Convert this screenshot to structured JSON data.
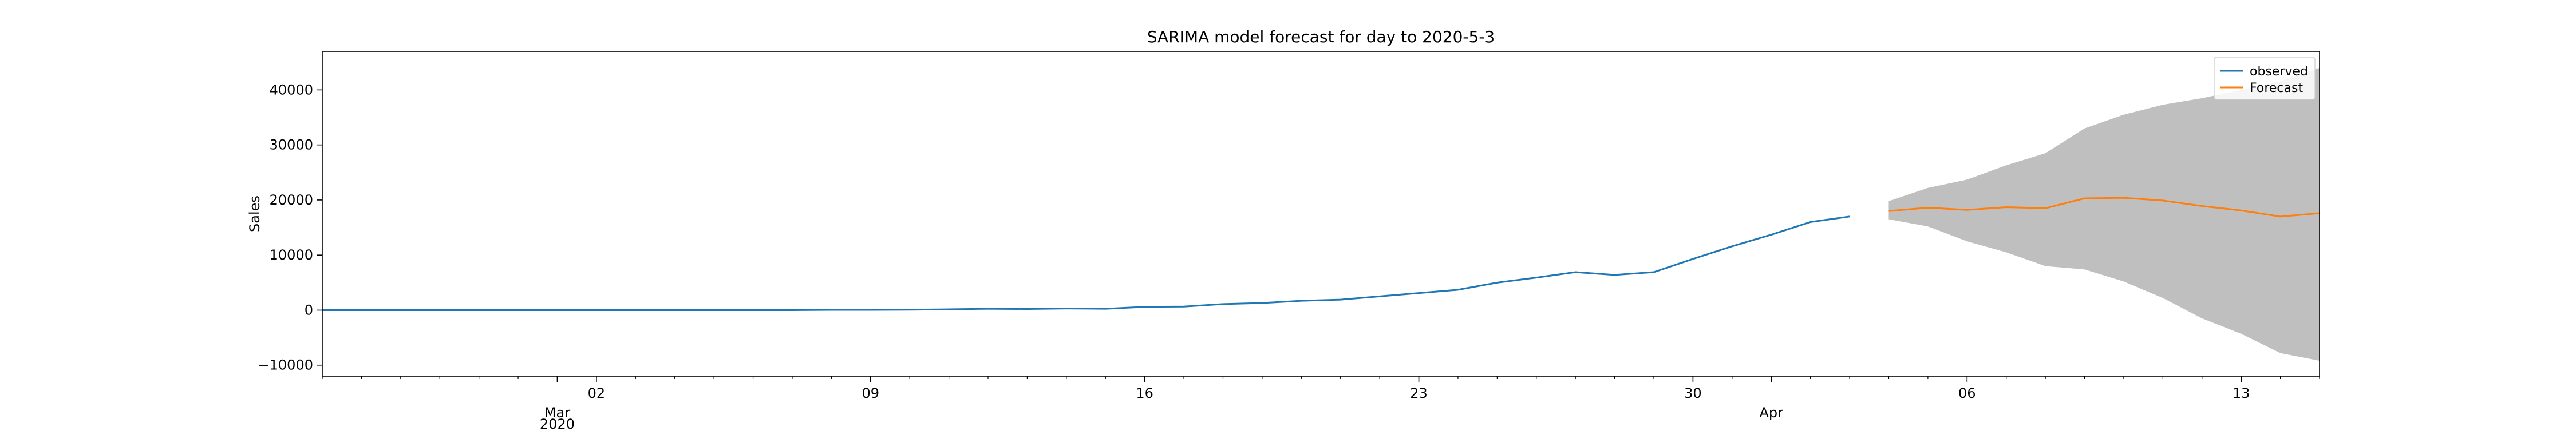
{
  "chart_data": {
    "type": "line",
    "title": "SARIMA model forecast for day to 2020-5-3",
    "xlabel": "",
    "ylabel": "Sales",
    "xlim": [
      "2020-02-24",
      "2020-04-15"
    ],
    "ylim": [
      -12000,
      47000
    ],
    "y_ticks": [
      -10000,
      0,
      10000,
      20000,
      30000,
      40000
    ],
    "y_tick_labels": [
      "−10000",
      "0",
      "10000",
      "20000",
      "30000",
      "40000"
    ],
    "x_major_ticks": [
      {
        "date": "2020-03-02",
        "label": "02"
      },
      {
        "date": "2020-03-09",
        "label": "09"
      },
      {
        "date": "2020-03-16",
        "label": "16"
      },
      {
        "date": "2020-03-23",
        "label": "23"
      },
      {
        "date": "2020-03-30",
        "label": "30"
      },
      {
        "date": "2020-04-06",
        "label": "06"
      },
      {
        "date": "2020-04-13",
        "label": "13"
      }
    ],
    "x_month_labels": [
      {
        "date": "2020-03-01",
        "label": "Mar"
      },
      {
        "date": "2020-04-01",
        "label": "Apr"
      }
    ],
    "x_year_labels": [
      {
        "date": "2020-03-01",
        "label": "2020"
      }
    ],
    "grid": false,
    "legend_position": "top-right",
    "colors": {
      "observed": "#1f77b4",
      "forecast": "#ff7f0e",
      "confidence": "#bfbfbf"
    },
    "series": [
      {
        "name": "observed",
        "x": [
          "2020-02-24",
          "2020-02-25",
          "2020-02-26",
          "2020-02-27",
          "2020-02-28",
          "2020-02-29",
          "2020-03-01",
          "2020-03-02",
          "2020-03-03",
          "2020-03-04",
          "2020-03-05",
          "2020-03-06",
          "2020-03-07",
          "2020-03-08",
          "2020-03-09",
          "2020-03-10",
          "2020-03-11",
          "2020-03-12",
          "2020-03-13",
          "2020-03-14",
          "2020-03-15",
          "2020-03-16",
          "2020-03-17",
          "2020-03-18",
          "2020-03-19",
          "2020-03-20",
          "2020-03-21",
          "2020-03-22",
          "2020-03-23",
          "2020-03-24",
          "2020-03-25",
          "2020-03-26",
          "2020-03-27",
          "2020-03-28",
          "2020-03-29",
          "2020-03-30",
          "2020-03-31",
          "2020-04-01",
          "2020-04-02",
          "2020-04-03"
        ],
        "values": [
          0,
          0,
          0,
          0,
          0,
          0,
          0,
          0,
          0,
          0,
          0,
          0,
          0,
          50,
          50,
          80,
          150,
          250,
          200,
          300,
          250,
          600,
          650,
          1100,
          1300,
          1700,
          1900,
          2500,
          3100,
          3700,
          5000,
          5900,
          6900,
          6400,
          6900,
          9300,
          11600,
          13700,
          16000,
          17000
        ]
      },
      {
        "name": "Forecast",
        "x": [
          "2020-04-04",
          "2020-04-05",
          "2020-04-06",
          "2020-04-07",
          "2020-04-08",
          "2020-04-09",
          "2020-04-10",
          "2020-04-11",
          "2020-04-12",
          "2020-04-13",
          "2020-04-14",
          "2020-04-15"
        ],
        "values": [
          18000,
          18600,
          18200,
          18700,
          18500,
          20300,
          20400,
          19900,
          18900,
          18100,
          17000,
          17600
        ],
        "lower": [
          16500,
          15200,
          12500,
          10500,
          8000,
          7400,
          5200,
          2200,
          -1500,
          -4300,
          -7800,
          -9200
        ],
        "upper": [
          19800,
          22200,
          23700,
          26300,
          28500,
          33000,
          35500,
          37300,
          38500,
          40000,
          41600,
          44000
        ]
      }
    ]
  }
}
